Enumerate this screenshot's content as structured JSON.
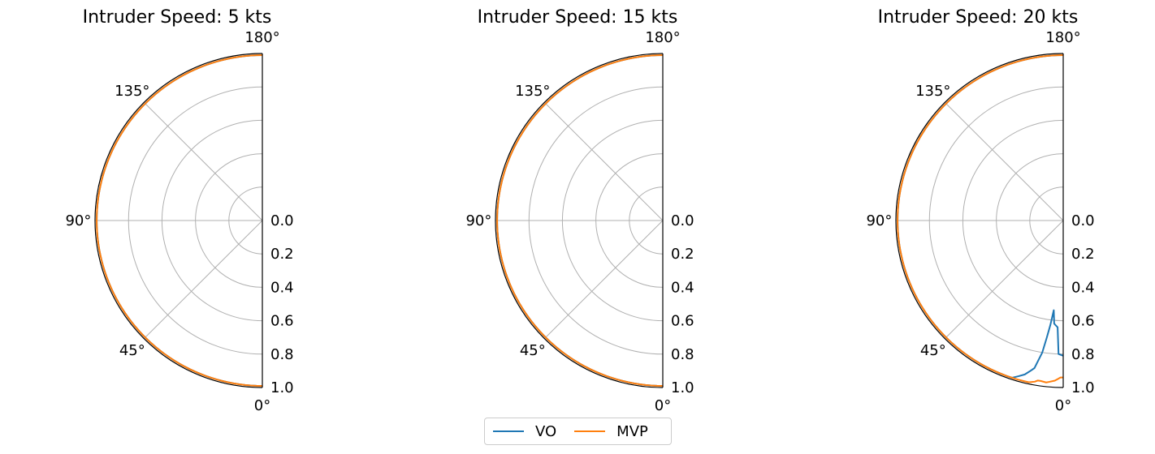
{
  "chart_data": [
    {
      "type": "polar-line",
      "title": "Intruder Speed: 5 kts",
      "theta_range_deg": [
        0,
        180
      ],
      "r_range": [
        0,
        1
      ],
      "theta_ticks": [
        "0°",
        "45°",
        "90°",
        "135°",
        "180°"
      ],
      "r_ticks": [
        "0.0",
        "0.2",
        "0.4",
        "0.6",
        "0.8",
        "1.0"
      ],
      "grid": true,
      "series": [
        {
          "name": "VO",
          "color": "#1f77b4",
          "theta_deg": [
            0,
            180
          ],
          "r": [
            0.99,
            0.99
          ]
        },
        {
          "name": "MVP",
          "color": "#ff7f0e",
          "theta_deg": [
            0,
            180
          ],
          "r": [
            0.99,
            0.99
          ]
        }
      ]
    },
    {
      "type": "polar-line",
      "title": "Intruder Speed: 15 kts",
      "theta_range_deg": [
        0,
        180
      ],
      "r_range": [
        0,
        1
      ],
      "theta_ticks": [
        "0°",
        "45°",
        "90°",
        "135°",
        "180°"
      ],
      "r_ticks": [
        "0.0",
        "0.2",
        "0.4",
        "0.6",
        "0.8",
        "1.0"
      ],
      "grid": true,
      "series": [
        {
          "name": "VO",
          "color": "#1f77b4",
          "theta_deg": [
            0,
            180
          ],
          "r": [
            0.99,
            0.99
          ]
        },
        {
          "name": "MVP",
          "color": "#ff7f0e",
          "theta_deg": [
            0,
            180
          ],
          "r": [
            0.99,
            0.99
          ]
        }
      ]
    },
    {
      "type": "polar-line",
      "title": "Intruder Speed: 20 kts",
      "theta_range_deg": [
        0,
        180
      ],
      "r_range": [
        0,
        1
      ],
      "theta_ticks": [
        "0°",
        "45°",
        "90°",
        "135°",
        "180°"
      ],
      "r_ticks": [
        "0.0",
        "0.2",
        "0.4",
        "0.6",
        "0.8",
        "1.0"
      ],
      "grid": true,
      "series": [
        {
          "name": "VO",
          "color": "#1f77b4",
          "theta_deg": [
            0,
            2,
            3,
            4,
            5,
            6,
            7,
            8,
            9,
            11,
            14,
            18,
            20,
            22,
            180
          ],
          "r": [
            0.81,
            0.8,
            0.64,
            0.63,
            0.62,
            0.54,
            0.63,
            0.71,
            0.8,
            0.9,
            0.95,
            0.99,
            0.99,
            0.99,
            0.99
          ]
        },
        {
          "name": "MVP",
          "color": "#ff7f0e",
          "theta_deg": [
            0,
            1,
            2,
            3,
            5,
            6,
            8,
            9,
            10,
            12,
            14,
            180
          ],
          "r": [
            0.94,
            0.94,
            0.95,
            0.96,
            0.97,
            0.975,
            0.97,
            0.97,
            0.98,
            0.99,
            0.99,
            0.99
          ]
        }
      ]
    }
  ],
  "legend": {
    "placement": "bottom-center",
    "items": [
      {
        "label": "VO",
        "color": "#1f77b4"
      },
      {
        "label": "MVP",
        "color": "#ff7f0e"
      }
    ]
  }
}
